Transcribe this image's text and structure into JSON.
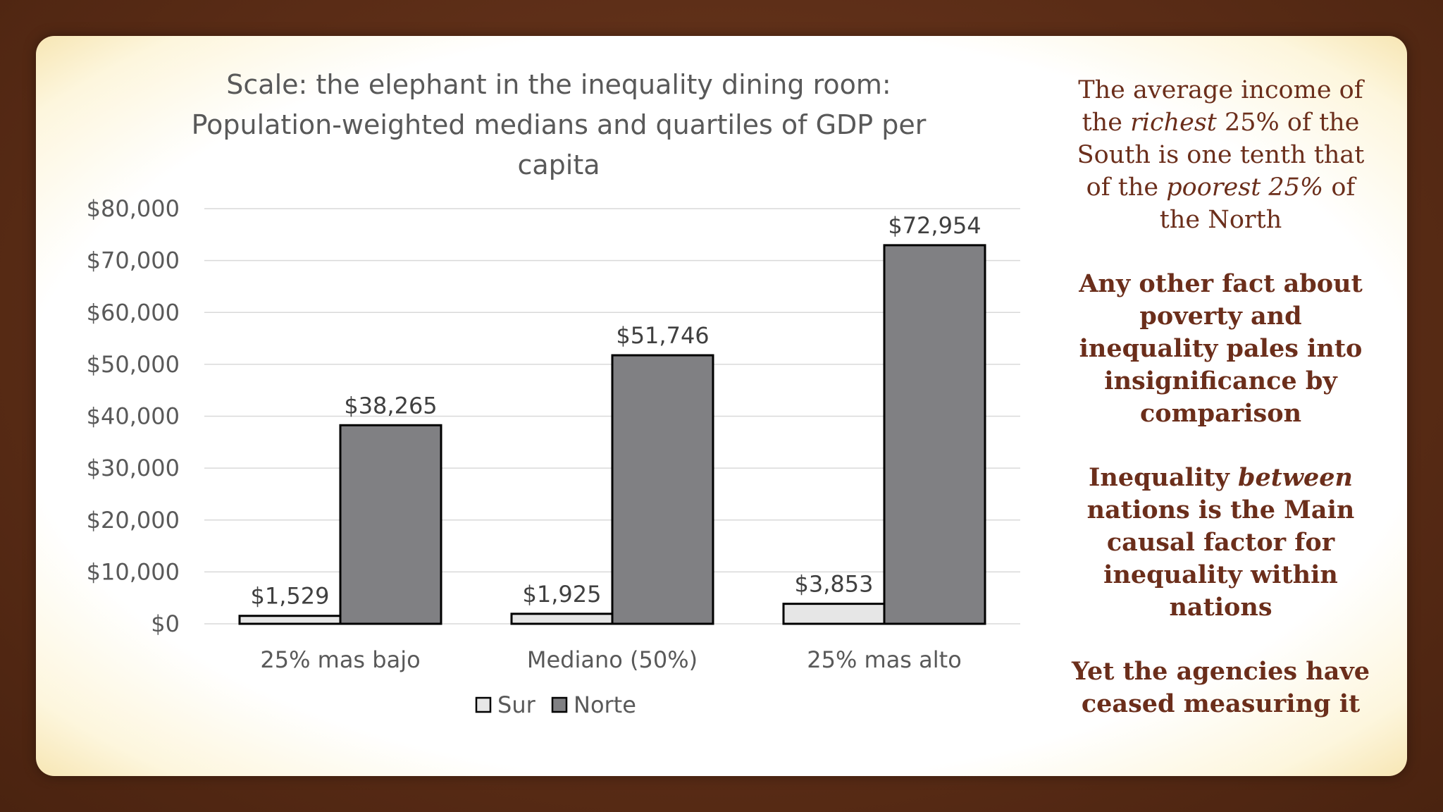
{
  "chart_data": {
    "type": "bar",
    "title": "Scale: the elephant in the inequality dining room: Population-weighted medians and quartiles of GDP per capita",
    "title_lines": [
      "Scale: the elephant in the inequality dining room:",
      "Population-weighted medians and quartiles of GDP per",
      "capita"
    ],
    "categories": [
      "25% mas bajo",
      "Mediano (50%)",
      "25% mas alto"
    ],
    "series": [
      {
        "name": "Sur",
        "values": [
          1529,
          1925,
          3853
        ],
        "labels": [
          "$1,529",
          "$1,925",
          "$3,853"
        ],
        "color": "#e6e6e6"
      },
      {
        "name": "Norte",
        "values": [
          38265,
          51746,
          72954
        ],
        "labels": [
          "$38,265",
          "$51,746",
          "$72,954"
        ],
        "color": "#808083"
      }
    ],
    "yticks": [
      "$0",
      "$10,000",
      "$20,000",
      "$30,000",
      "$40,000",
      "$50,000",
      "$60,000",
      "$70,000",
      "$80,000"
    ],
    "ylim": [
      0,
      80000
    ],
    "xlabel": "",
    "ylabel": "",
    "grid": true,
    "legend_position": "bottom"
  },
  "side": {
    "p1": {
      "a": "The average income of the ",
      "b": "richest",
      "c": " 25% of the South is one tenth that of the ",
      "d": "poorest 25%",
      "e": " of the North"
    },
    "p2": "Any other fact about poverty and inequality pales into insignificance by comparison",
    "p3": {
      "a": "Inequality ",
      "b": "between",
      "c": " nations is the Main causal factor for inequality within nations"
    },
    "p4": "Yet the agencies have ceased measuring it"
  },
  "colors": {
    "background": "#5a2c16",
    "panel": "#ffffff",
    "side_text": "#6b2e1b"
  }
}
